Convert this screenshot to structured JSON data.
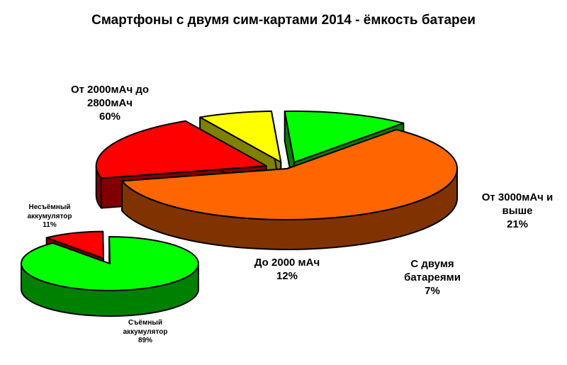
{
  "chart_data": [
    {
      "type": "pie",
      "title": "Смартфоны с двумя сим-картами 2014 - ёмкость батареи",
      "slices": [
        {
          "label": "От 2000мАч до 2800мАч",
          "value": 60,
          "display": "От 2000мАч до\n2800мАч\n60%",
          "color": "#ff6600",
          "side": "#803300",
          "exploded": false
        },
        {
          "label": "От 3000мАч и выше",
          "value": 21,
          "display": "От 3000мАч и\nвыше\n21%",
          "color": "#ff0000",
          "side": "#800000",
          "exploded": true
        },
        {
          "label": "С двумя батареями",
          "value": 7,
          "display": "С двумя\nбатареями\n7%",
          "color": "#ffff00",
          "side": "#808000",
          "exploded": true
        },
        {
          "label": "До 2000 мАч",
          "value": 12,
          "display": "До 2000 мАч\n12%",
          "color": "#00ff00",
          "side": "#008000",
          "exploded": true
        }
      ]
    },
    {
      "type": "pie",
      "title": "",
      "slices": [
        {
          "label": "Несъёмный аккумулятор",
          "value": 11,
          "display": "Несъёмный\nаккумулятор\n11%",
          "color": "#ff0000",
          "side": "#800000",
          "exploded": true
        },
        {
          "label": "Съёмный аккумулятор",
          "value": 89,
          "display": "Съёмный\nаккумулятор\n89%",
          "color": "#00ff00",
          "side": "#008000",
          "exploded": false
        }
      ]
    }
  ]
}
